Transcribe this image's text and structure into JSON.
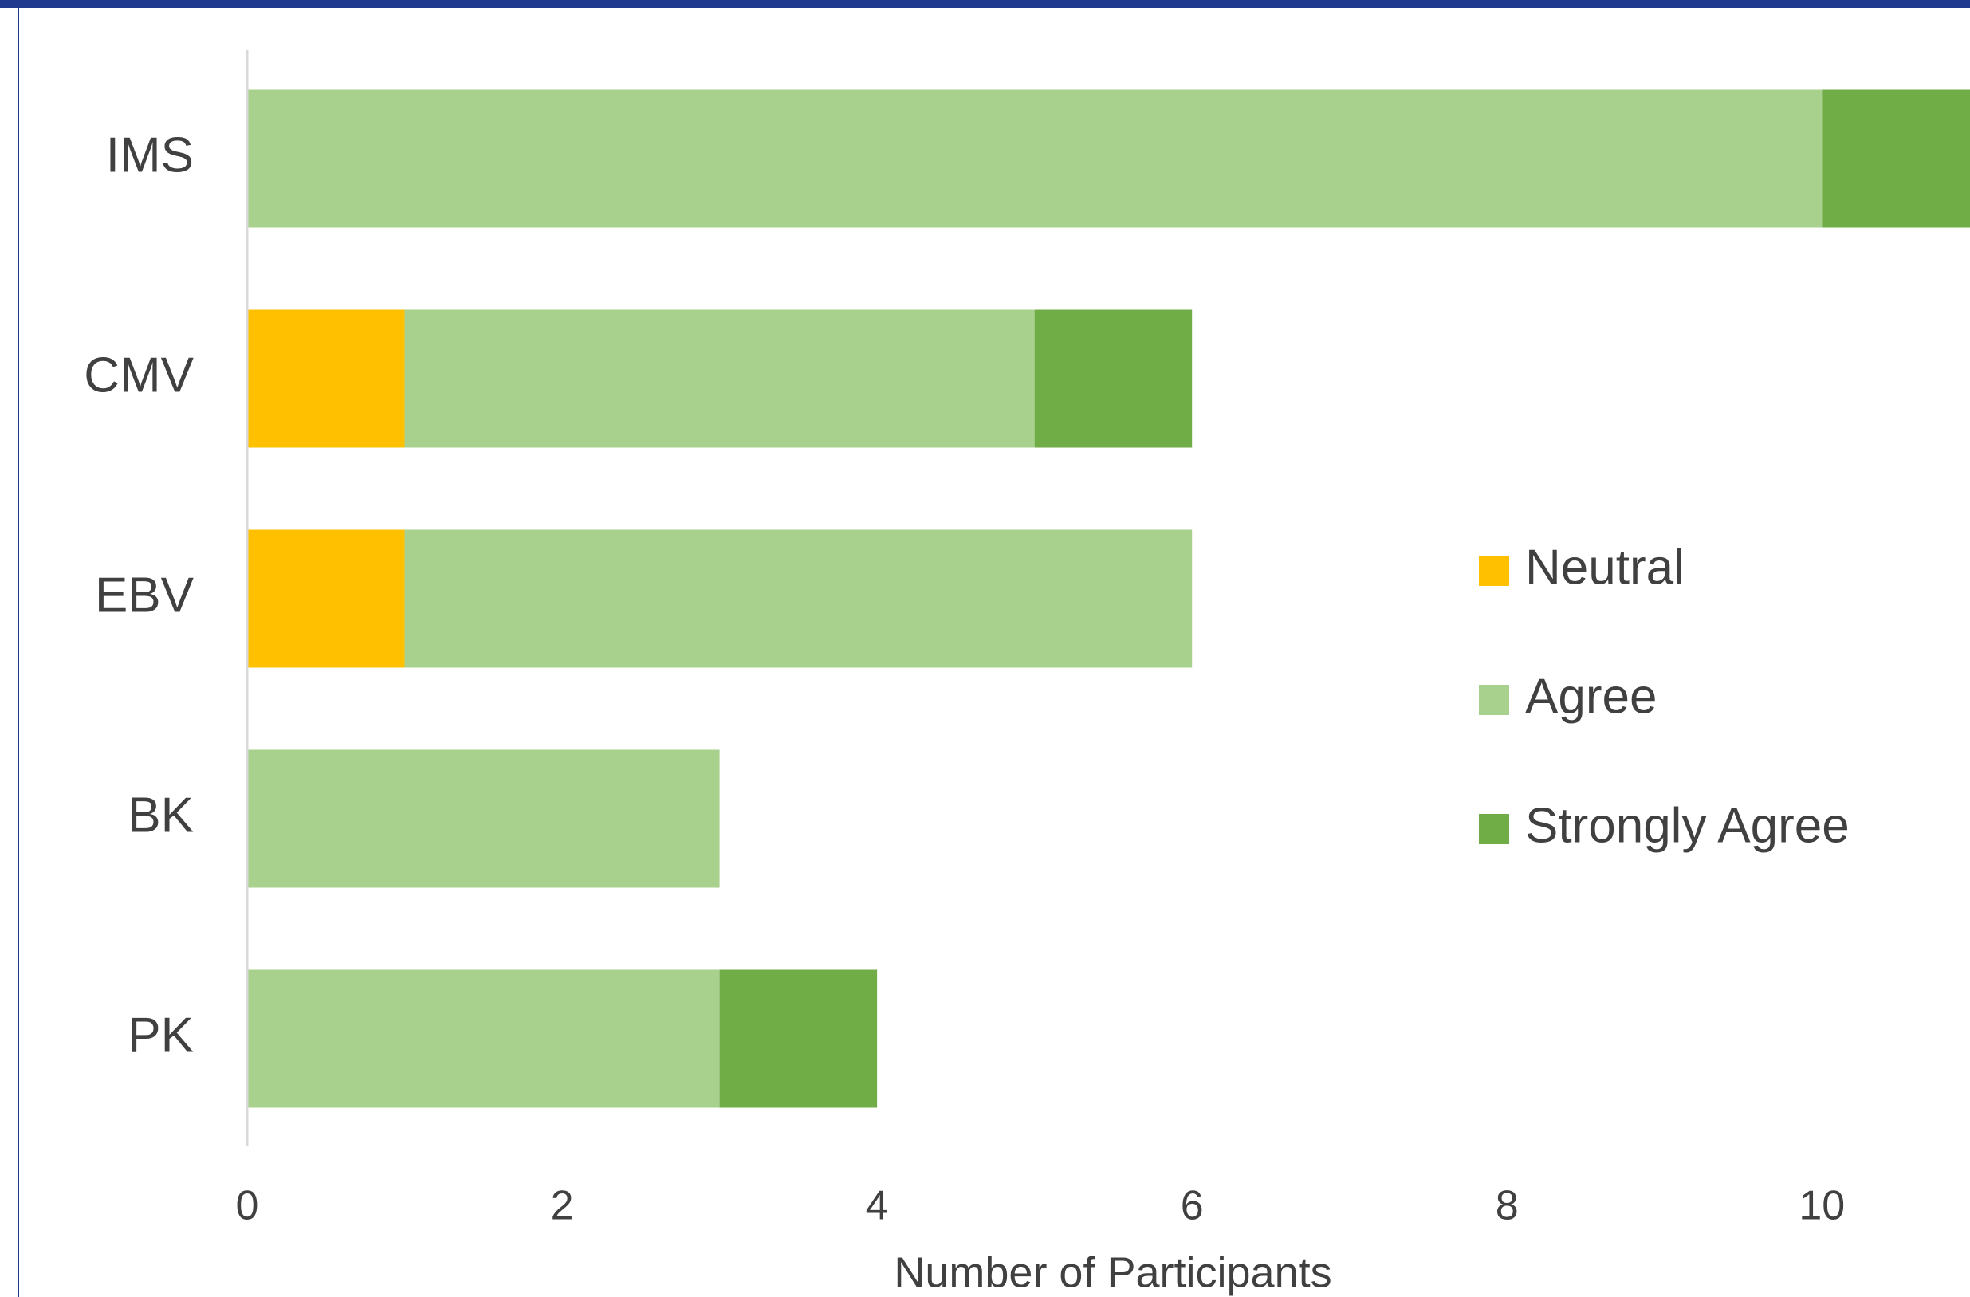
{
  "chart_data": {
    "type": "stacked-bar-horizontal",
    "x_label": "Number of Participants",
    "categories": [
      "IMS",
      "CMV",
      "EBV",
      "BK",
      "PK"
    ],
    "series": [
      {
        "name": "Neutral",
        "color": "#FFC000",
        "values": [
          0,
          1,
          1,
          0,
          0
        ]
      },
      {
        "name": "Agree",
        "color": "#A9D18E",
        "values": [
          10,
          4,
          5,
          3,
          3
        ]
      },
      {
        "name": "Strongly Agree",
        "color": "#70AD47",
        "values": [
          1,
          1,
          0,
          0,
          1
        ]
      }
    ],
    "xlim": [
      0,
      10.94
    ],
    "xticks": [
      0,
      2,
      4,
      6,
      8,
      10
    ],
    "legend": "right"
  }
}
